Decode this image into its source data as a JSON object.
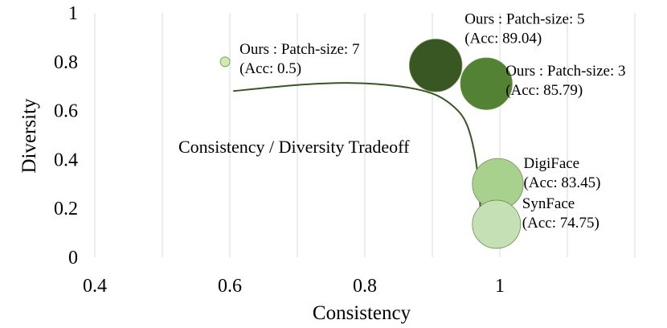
{
  "chart_data": {
    "type": "scatter",
    "title": "",
    "xlabel": "Consistency",
    "ylabel": "Diversity",
    "xlim": [
      0.4,
      1.2
    ],
    "ylim": [
      0,
      1
    ],
    "x_ticks": [
      0.4,
      0.6,
      0.8,
      1.0
    ],
    "x_tick_labels": [
      "0.4",
      "0.6",
      "0.8",
      "1"
    ],
    "y_ticks": [
      0,
      0.2,
      0.4,
      0.6,
      0.8,
      1.0
    ],
    "y_tick_labels": [
      "0",
      "0.2",
      "0.4",
      "0.6",
      "0.8",
      "1"
    ],
    "grid": "vertical",
    "bubble_size_encodes": "accuracy",
    "points": [
      {
        "name": "Ours : Patch-size: 7",
        "acc_label": "(Acc: 0.5)",
        "x": 0.593,
        "y": 0.8,
        "acc": 0.5,
        "color": "#ccecb4"
      },
      {
        "name": "Ours : Patch-size: 5",
        "acc_label": "(Acc: 89.04)",
        "x": 0.905,
        "y": 0.785,
        "acc": 89.04,
        "color": "#385723"
      },
      {
        "name": "Ours : Patch-size: 3",
        "acc_label": "(Acc: 85.79)",
        "x": 0.98,
        "y": 0.71,
        "acc": 85.79,
        "color": "#548235"
      },
      {
        "name": "DigiFace",
        "acc_label": "(Acc: 83.45)",
        "x": 0.997,
        "y": 0.3,
        "acc": 83.45,
        "color": "#a9d18e"
      },
      {
        "name": "SynFace",
        "acc_label": "(Acc: 74.75)",
        "x": 0.995,
        "y": 0.135,
        "acc": 74.75,
        "color": "#c5e0b4"
      }
    ],
    "tradeoff_curve": {
      "label": "Consistency / Diversity Tradeoff",
      "color": "#375623",
      "points": [
        [
          0.605,
          0.68
        ],
        [
          0.7,
          0.705
        ],
        [
          0.78,
          0.713
        ],
        [
          0.85,
          0.7
        ],
        [
          0.9,
          0.67
        ],
        [
          0.93,
          0.62
        ],
        [
          0.95,
          0.55
        ],
        [
          0.963,
          0.42
        ],
        [
          0.97,
          0.25
        ],
        [
          0.973,
          0.07
        ]
      ]
    }
  }
}
